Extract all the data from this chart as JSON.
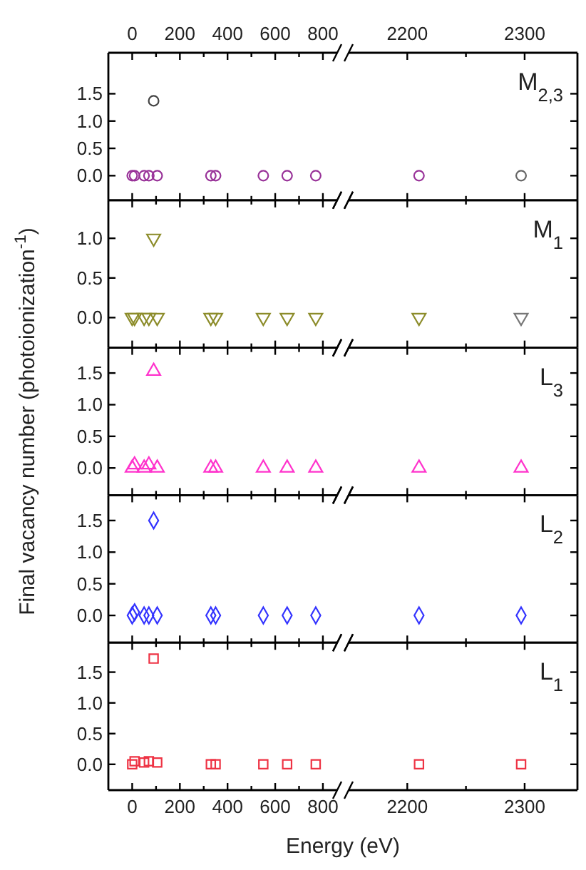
{
  "chart_data": [
    {
      "type": "scatter",
      "marker": "circle",
      "x": [
        0,
        10,
        50,
        70,
        90,
        105,
        330,
        350,
        550,
        650,
        770
      ],
      "values": [
        0,
        0,
        0,
        0,
        1.37,
        0,
        0,
        0,
        0,
        0,
        0
      ],
      "colors": [
        "#993399",
        "#993399",
        "#993399",
        "#993399",
        "#444444",
        "#993399",
        "#993399",
        "#993399",
        "#993399",
        "#993399",
        "#993399"
      ],
      "xlim": [
        -100,
        860
      ],
      "xticks": [
        0,
        {
          "value": 100,
          "label": null
        },
        200,
        {
          "value": 300,
          "label": null
        },
        400,
        {
          "value": 500,
          "label": null
        },
        600,
        {
          "value": 700,
          "label": null
        },
        800
      ],
      "x2lim": [
        -100,
        860
      ],
      "x2ticks": [
        0,
        {
          "value": 100,
          "label": null
        },
        200,
        {
          "value": 300,
          "label": null
        },
        400,
        {
          "value": 500,
          "label": null
        },
        600,
        {
          "value": 700,
          "label": null
        },
        800
      ],
      "ylim": [
        -0.45,
        2.25
      ],
      "yticks": [
        {
          "value": 0,
          "label": "0.0"
        },
        {
          "value": 0.5,
          "label": "0.5"
        },
        {
          "value": 1,
          "label": "1.0"
        },
        {
          "value": 1.5,
          "label": "1.5"
        }
      ],
      "tick_labels": "y"
    },
    {
      "type": "scatter",
      "marker": "circle",
      "annotations": [
        "M$_{2,3}$"
      ],
      "x": [
        2210,
        2297
      ],
      "values": [
        0,
        0
      ],
      "colors": [
        "#993399",
        "#666666"
      ],
      "xlim": [
        2150,
        2345
      ],
      "xticks": [
        2200,
        {
          "value": 2250,
          "label": null
        },
        2300
      ],
      "x2lim": [
        2150,
        2345
      ],
      "x2ticks": [
        2200,
        {
          "value": 2250,
          "label": null
        },
        2300
      ],
      "ylim": [
        -0.45,
        2.25
      ],
      "yticks": [
        {
          "value": 0,
          "label": null
        },
        {
          "value": 0.5,
          "label": null
        },
        {
          "value": 1,
          "label": null
        },
        {
          "value": 1.5,
          "label": null
        }
      ],
      "tick_labels": false
    },
    {
      "type": "scatter",
      "marker": "triangle-down",
      "x": [
        0,
        10,
        50,
        70,
        90,
        105,
        330,
        350,
        550,
        650,
        770
      ],
      "values": [
        0,
        0,
        0,
        0,
        1.0,
        0,
        0,
        0,
        0,
        0,
        0
      ],
      "colors": [
        "#8c8c2a",
        "#8c8c2a",
        "#8c8c2a",
        "#8c8c2a",
        "#8c8c2a",
        "#8c8c2a",
        "#8c8c2a",
        "#8c8c2a",
        "#8c8c2a",
        "#8c8c2a",
        "#8c8c2a"
      ],
      "xlim": [
        -100,
        860
      ],
      "xticks": [
        0,
        {
          "value": 100,
          "label": null
        },
        200,
        {
          "value": 300,
          "label": null
        },
        400,
        {
          "value": 500,
          "label": null
        },
        600,
        {
          "value": 700,
          "label": null
        },
        800
      ],
      "ylim": [
        -0.38,
        1.48
      ],
      "yticks": [
        {
          "value": 0,
          "label": "0.0"
        },
        {
          "value": 0.5,
          "label": "0.5"
        },
        {
          "value": 1,
          "label": "1.0"
        }
      ],
      "tick_labels": "y"
    },
    {
      "type": "scatter",
      "marker": "triangle-down",
      "annotations": [
        "M$_{1}$"
      ],
      "x": [
        2210,
        2297
      ],
      "values": [
        0,
        0
      ],
      "colors": [
        "#8c8c2a",
        "#777777"
      ],
      "xlim": [
        2150,
        2345
      ],
      "xticks": [
        2200,
        {
          "value": 2250,
          "label": null
        },
        2300
      ],
      "ylim": [
        -0.38,
        1.48
      ],
      "yticks": [
        {
          "value": 0,
          "label": null
        },
        {
          "value": 0.5,
          "label": null
        },
        {
          "value": 1,
          "label": null
        }
      ],
      "tick_labels": false
    },
    {
      "type": "scatter",
      "marker": "triangle",
      "ylabel": "Final vacancy number (photoionization$^{-1}$)",
      "x": [
        0,
        10,
        50,
        70,
        90,
        105,
        330,
        350,
        550,
        650,
        770
      ],
      "values": [
        0,
        0.05,
        0,
        0.05,
        1.53,
        0,
        0,
        0,
        0,
        0,
        0
      ],
      "colors": [
        "#ff33cc",
        "#ff33cc",
        "#ff33cc",
        "#ff33cc",
        "#ff33cc",
        "#ff33cc",
        "#ff33cc",
        "#ff33cc",
        "#ff33cc",
        "#ff33cc",
        "#ff33cc"
      ],
      "xlim": [
        -100,
        860
      ],
      "xticks": [
        0,
        {
          "value": 100,
          "label": null
        },
        200,
        {
          "value": 300,
          "label": null
        },
        400,
        {
          "value": 500,
          "label": null
        },
        600,
        {
          "value": 700,
          "label": null
        },
        800
      ],
      "ylim": [
        -0.43,
        1.9
      ],
      "yticks": [
        {
          "value": 0,
          "label": "0.0"
        },
        {
          "value": 0.5,
          "label": "0.5"
        },
        {
          "value": 1,
          "label": "1.0"
        },
        {
          "value": 1.5,
          "label": "1.5"
        }
      ],
      "tick_labels": "y"
    },
    {
      "type": "scatter",
      "marker": "triangle",
      "annotations": [
        "L$_{3}$"
      ],
      "x": [
        2210,
        2297
      ],
      "values": [
        0,
        0
      ],
      "colors": [
        "#ff33cc",
        "#ff33cc"
      ],
      "xlim": [
        2150,
        2345
      ],
      "xticks": [
        2200,
        {
          "value": 2250,
          "label": null
        },
        2300
      ],
      "ylim": [
        -0.43,
        1.9
      ],
      "yticks": [
        {
          "value": 0,
          "label": null
        },
        {
          "value": 0.5,
          "label": null
        },
        {
          "value": 1,
          "label": null
        },
        {
          "value": 1.5,
          "label": null
        }
      ],
      "tick_labels": false
    },
    {
      "type": "scatter",
      "marker": "diamond",
      "x": [
        0,
        10,
        50,
        70,
        90,
        105,
        330,
        350,
        550,
        650,
        770
      ],
      "values": [
        0,
        0.05,
        0,
        0,
        1.5,
        0,
        0,
        0,
        0,
        0,
        0
      ],
      "colors": [
        "#3333ff",
        "#3333ff",
        "#3333ff",
        "#3333ff",
        "#3333ff",
        "#3333ff",
        "#3333ff",
        "#3333ff",
        "#3333ff",
        "#3333ff",
        "#3333ff"
      ],
      "xlim": [
        -100,
        860
      ],
      "xticks": [
        0,
        {
          "value": 100,
          "label": null
        },
        200,
        {
          "value": 300,
          "label": null
        },
        400,
        {
          "value": 500,
          "label": null
        },
        600,
        {
          "value": 700,
          "label": null
        },
        800
      ],
      "ylim": [
        -0.43,
        1.9
      ],
      "yticks": [
        {
          "value": 0,
          "label": "0.0"
        },
        {
          "value": 0.5,
          "label": "0.5"
        },
        {
          "value": 1,
          "label": "1.0"
        },
        {
          "value": 1.5,
          "label": "1.5"
        }
      ],
      "tick_labels": "y"
    },
    {
      "type": "scatter",
      "marker": "diamond",
      "annotations": [
        "L$_{2}$"
      ],
      "x": [
        2210,
        2297
      ],
      "values": [
        0,
        0
      ],
      "colors": [
        "#3333ff",
        "#3333ff"
      ],
      "xlim": [
        2150,
        2345
      ],
      "xticks": [
        2200,
        {
          "value": 2250,
          "label": null
        },
        2300
      ],
      "ylim": [
        -0.43,
        1.9
      ],
      "yticks": [
        {
          "value": 0,
          "label": null
        },
        {
          "value": 0.5,
          "label": null
        },
        {
          "value": 1,
          "label": null
        },
        {
          "value": 1.5,
          "label": null
        }
      ],
      "tick_labels": false
    },
    {
      "type": "scatter",
      "marker": "square",
      "xlabel": "Energy (eV)",
      "x": [
        0,
        10,
        50,
        70,
        90,
        105,
        330,
        350,
        550,
        650,
        770
      ],
      "values": [
        0,
        0.05,
        0.03,
        0.05,
        1.72,
        0.03,
        0,
        0,
        0,
        0,
        0
      ],
      "colors": [
        "#ee3344",
        "#ee3344",
        "#ee3344",
        "#ee3344",
        "#ee3344",
        "#ee3344",
        "#ee3344",
        "#ee3344",
        "#ee3344",
        "#ee3344",
        "#ee3344"
      ],
      "xlim": [
        -100,
        860
      ],
      "xticks": [
        0,
        {
          "value": 100,
          "label": null
        },
        200,
        {
          "value": 300,
          "label": null
        },
        400,
        {
          "value": 500,
          "label": null
        },
        600,
        {
          "value": 700,
          "label": null
        },
        800
      ],
      "ylim": [
        -0.42,
        1.98
      ],
      "yticks": [
        {
          "value": 0,
          "label": "0.0"
        },
        {
          "value": 0.5,
          "label": "0.5"
        },
        {
          "value": 1,
          "label": "1.0"
        },
        {
          "value": 1.5,
          "label": "1.5"
        }
      ]
    },
    {
      "type": "scatter",
      "marker": "square",
      "annotations": [
        "L$_{1}$"
      ],
      "x": [
        2210,
        2297
      ],
      "values": [
        0,
        0
      ],
      "colors": [
        "#ee3344",
        "#ee3344"
      ],
      "xlim": [
        2150,
        2345
      ],
      "xticks": [
        2200,
        {
          "value": 2250,
          "label": null
        },
        2300
      ],
      "ylim": [
        -0.42,
        1.98
      ],
      "yticks": [
        {
          "value": 0,
          "label": null
        },
        {
          "value": 0.5,
          "label": null
        },
        {
          "value": 1,
          "label": null
        },
        {
          "value": 1.5,
          "label": null
        }
      ],
      "tick_labels": "x"
    }
  ]
}
